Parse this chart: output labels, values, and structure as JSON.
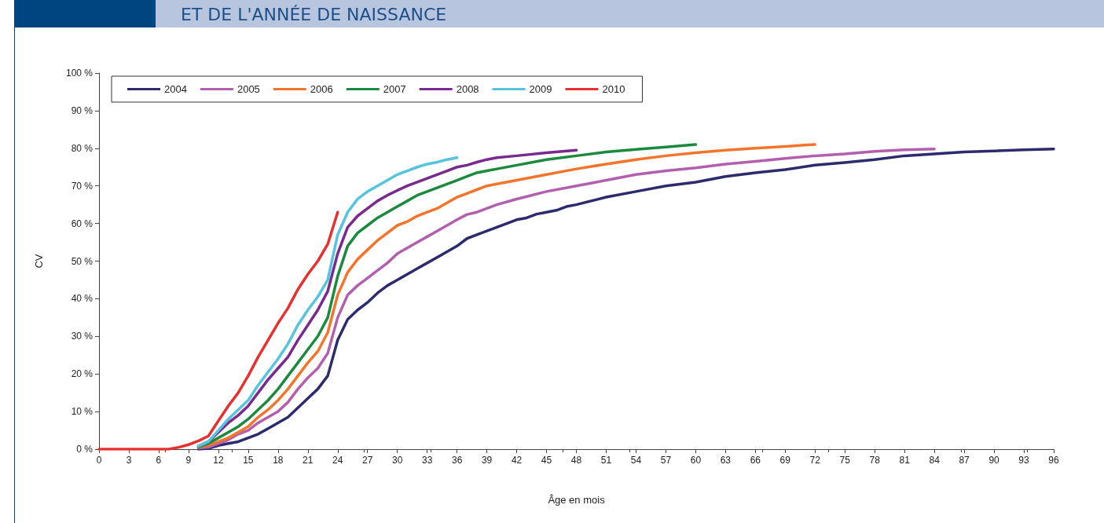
{
  "chart_data": {
    "type": "line",
    "title": "ET DE L'ANNÉE DE NAISSANCE",
    "xlabel": "Âge en mois",
    "ylabel": "CV",
    "xlim": [
      0,
      96
    ],
    "xticks": [
      0,
      3,
      6,
      9,
      12,
      15,
      18,
      21,
      24,
      27,
      30,
      33,
      36,
      39,
      42,
      45,
      48,
      51,
      54,
      57,
      60,
      63,
      66,
      69,
      72,
      75,
      78,
      81,
      84,
      87,
      90,
      93,
      96
    ],
    "ylim": [
      0,
      100
    ],
    "yticks": [
      {
        "value": 0,
        "label": "0 %"
      },
      {
        "value": 10,
        "label": "10 %"
      },
      {
        "value": 20,
        "label": "20 %"
      },
      {
        "value": 30,
        "label": "30 %"
      },
      {
        "value": 40,
        "label": "40 %"
      },
      {
        "value": 50,
        "label": "50 %"
      },
      {
        "value": 60,
        "label": "60 %"
      },
      {
        "value": 70,
        "label": "70 %"
      },
      {
        "value": 80,
        "label": "80 %"
      },
      {
        "value": 90,
        "label": "90 %"
      },
      {
        "value": 100,
        "label": "100 %"
      }
    ],
    "grid": false,
    "legend": "top left",
    "marker": "none",
    "line_style": "solid",
    "series": [
      {
        "name": "2004",
        "color": "#2e2a6e",
        "x": [
          10,
          11,
          12,
          13,
          14,
          15,
          16,
          17,
          18,
          19,
          20,
          21,
          22,
          23,
          24,
          25,
          26,
          27,
          28,
          29,
          30,
          31,
          32,
          33,
          34,
          35,
          36,
          37,
          38,
          39,
          40,
          41,
          42,
          43,
          44,
          45,
          46,
          47,
          48,
          51,
          54,
          57,
          60,
          63,
          66,
          69,
          72,
          75,
          78,
          81,
          84,
          87,
          90,
          93,
          96
        ],
        "values": [
          0,
          0.2,
          1,
          1.5,
          2,
          3,
          4,
          5.5,
          7,
          8.5,
          11,
          13.5,
          16,
          19.5,
          29,
          34.5,
          37,
          39,
          41.5,
          43.5,
          45,
          46.5,
          48,
          49.5,
          51,
          52.5,
          54,
          56,
          57,
          58,
          59,
          60,
          61,
          61.5,
          62.5,
          63,
          63.5,
          64.5,
          65,
          67,
          68.5,
          70,
          71,
          72.5,
          73.5,
          74.3,
          75.5,
          76.2,
          77,
          78,
          78.5,
          79,
          79.3,
          79.6,
          79.8
        ]
      },
      {
        "name": "2005",
        "color": "#b25fad",
        "x": [
          10,
          11,
          12,
          13,
          14,
          15,
          16,
          17,
          18,
          19,
          20,
          21,
          22,
          23,
          24,
          25,
          26,
          27,
          28,
          29,
          30,
          31,
          32,
          33,
          34,
          35,
          36,
          37,
          38,
          39,
          40,
          42,
          45,
          48,
          51,
          54,
          57,
          60,
          63,
          66,
          69,
          72,
          75,
          78,
          81,
          84
        ],
        "values": [
          0.3,
          0.5,
          1.5,
          2.5,
          4,
          5,
          7,
          8.5,
          10,
          12.5,
          16,
          19,
          21.5,
          25.5,
          35,
          41,
          43.5,
          45.5,
          47.5,
          49.5,
          52,
          53.5,
          55,
          56.5,
          58,
          59.5,
          61,
          62.4,
          63,
          64,
          65,
          66.5,
          68.5,
          70,
          71.5,
          73,
          74,
          74.8,
          75.8,
          76.5,
          77.3,
          78,
          78.5,
          79.2,
          79.6,
          79.8
        ]
      },
      {
        "name": "2006",
        "color": "#f3752b",
        "x": [
          10,
          11,
          12,
          13,
          14,
          15,
          16,
          17,
          18,
          19,
          20,
          21,
          22,
          23,
          24,
          25,
          26,
          27,
          28,
          29,
          30,
          31,
          32,
          33,
          34,
          35,
          36,
          37,
          38,
          39,
          40,
          42,
          45,
          48,
          51,
          54,
          57,
          60,
          63,
          66,
          69,
          72
        ],
        "values": [
          0.5,
          1,
          2,
          3,
          4.5,
          6,
          8.5,
          10.5,
          13,
          16,
          19.5,
          23,
          26,
          31,
          41,
          47,
          50.5,
          53,
          55.5,
          57.5,
          59.5,
          60.5,
          62,
          63,
          64,
          65.5,
          67,
          68,
          69,
          70,
          70.5,
          71.5,
          73,
          74.5,
          75.8,
          77,
          78,
          78.8,
          79.5,
          80,
          80.5,
          81
        ]
      },
      {
        "name": "2007",
        "color": "#1c8a3e",
        "x": [
          10,
          11,
          12,
          13,
          14,
          15,
          16,
          17,
          18,
          19,
          20,
          21,
          22,
          23,
          24,
          25,
          26,
          27,
          28,
          29,
          30,
          31,
          32,
          33,
          34,
          35,
          36,
          37,
          38,
          39,
          40,
          42,
          45,
          48,
          51,
          54,
          57,
          60
        ],
        "values": [
          0.6,
          1.5,
          3,
          4.5,
          6,
          8,
          10.5,
          13,
          16,
          19.5,
          23,
          26.5,
          30,
          35,
          46,
          54,
          57.5,
          59.5,
          61.5,
          63,
          64.5,
          66,
          67.5,
          68.5,
          69.5,
          70.5,
          71.5,
          72.5,
          73.5,
          74,
          74.5,
          75.5,
          77,
          78,
          79,
          79.7,
          80.3,
          81
        ]
      },
      {
        "name": "2008",
        "color": "#7a2a8e",
        "x": [
          10,
          11,
          12,
          13,
          14,
          15,
          16,
          17,
          18,
          19,
          20,
          21,
          22,
          23,
          24,
          25,
          26,
          27,
          28,
          29,
          30,
          31,
          32,
          33,
          34,
          35,
          36,
          37,
          38,
          39,
          40,
          42,
          45,
          48
        ],
        "values": [
          0.8,
          2,
          4.5,
          7,
          9,
          11.5,
          15,
          18.5,
          21.5,
          24.5,
          29,
          33,
          37,
          42,
          52,
          59,
          62,
          64,
          66,
          67.5,
          68.8,
          70,
          71,
          72,
          73,
          74,
          75,
          75.5,
          76.3,
          77,
          77.5,
          78,
          78.8,
          79.5
        ]
      },
      {
        "name": "2009",
        "color": "#55c4dc",
        "x": [
          10,
          11,
          12,
          13,
          14,
          15,
          16,
          17,
          18,
          19,
          20,
          21,
          22,
          23,
          24,
          25,
          26,
          27,
          28,
          29,
          30,
          31,
          32,
          33,
          34,
          35,
          36
        ],
        "values": [
          0.8,
          2,
          5,
          8,
          10.5,
          13,
          17,
          20.5,
          24,
          28,
          33,
          37,
          40.5,
          45,
          57,
          63,
          66.5,
          68.5,
          70,
          71.5,
          73,
          74,
          75,
          75.8,
          76.3,
          77,
          77.5
        ]
      },
      {
        "name": "2010",
        "color": "#e8312f",
        "x": [
          0,
          7,
          8,
          9,
          10,
          11,
          12,
          13,
          14,
          15,
          16,
          17,
          18,
          19,
          20,
          21,
          22,
          23,
          24
        ],
        "values": [
          0,
          0,
          0.5,
          1.2,
          2.2,
          3.5,
          7.5,
          11.5,
          15,
          19.5,
          24.5,
          29,
          33.5,
          37.5,
          42.5,
          46.5,
          50,
          54.5,
          63
        ]
      }
    ]
  }
}
